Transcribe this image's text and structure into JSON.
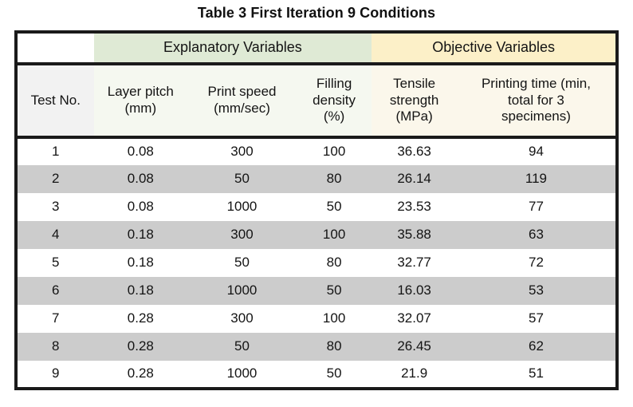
{
  "title": "Table 3 First Iteration 9 Conditions",
  "table": {
    "group_headers": {
      "blank": "",
      "explanatory": "Explanatory Variables",
      "objective": "Objective Variables"
    },
    "columns": [
      {
        "key": "test-no",
        "group": "test",
        "label": "Test No."
      },
      {
        "key": "layer-pitch",
        "group": "exp",
        "label": "Layer pitch\n(mm)"
      },
      {
        "key": "print-speed",
        "group": "exp",
        "label": "Print speed\n(mm/sec)"
      },
      {
        "key": "filling-density",
        "group": "exp",
        "label": "Filling\ndensity\n(%)"
      },
      {
        "key": "tensile-strength",
        "group": "obj",
        "label": "Tensile\nstrength\n(MPa)"
      },
      {
        "key": "printing-time",
        "group": "obj",
        "label": "Printing time (min,\ntotal for 3\nspecimens)"
      }
    ],
    "rows": [
      [
        "1",
        "0.08",
        "300",
        "100",
        "36.63",
        "94"
      ],
      [
        "2",
        "0.08",
        "50",
        "80",
        "26.14",
        "119"
      ],
      [
        "3",
        "0.08",
        "1000",
        "50",
        "23.53",
        "77"
      ],
      [
        "4",
        "0.18",
        "300",
        "100",
        "35.88",
        "63"
      ],
      [
        "5",
        "0.18",
        "50",
        "80",
        "32.77",
        "72"
      ],
      [
        "6",
        "0.18",
        "1000",
        "50",
        "16.03",
        "53"
      ],
      [
        "7",
        "0.28",
        "300",
        "100",
        "32.07",
        "57"
      ],
      [
        "8",
        "0.28",
        "50",
        "80",
        "26.45",
        "62"
      ],
      [
        "9",
        "0.28",
        "1000",
        "50",
        "21.9",
        "51"
      ]
    ],
    "colors": {
      "explanatory_header": "#dfead5",
      "objective_header": "#fcf0c8",
      "stripe_row": "#cccccc",
      "border": "#1a1a1a"
    }
  }
}
